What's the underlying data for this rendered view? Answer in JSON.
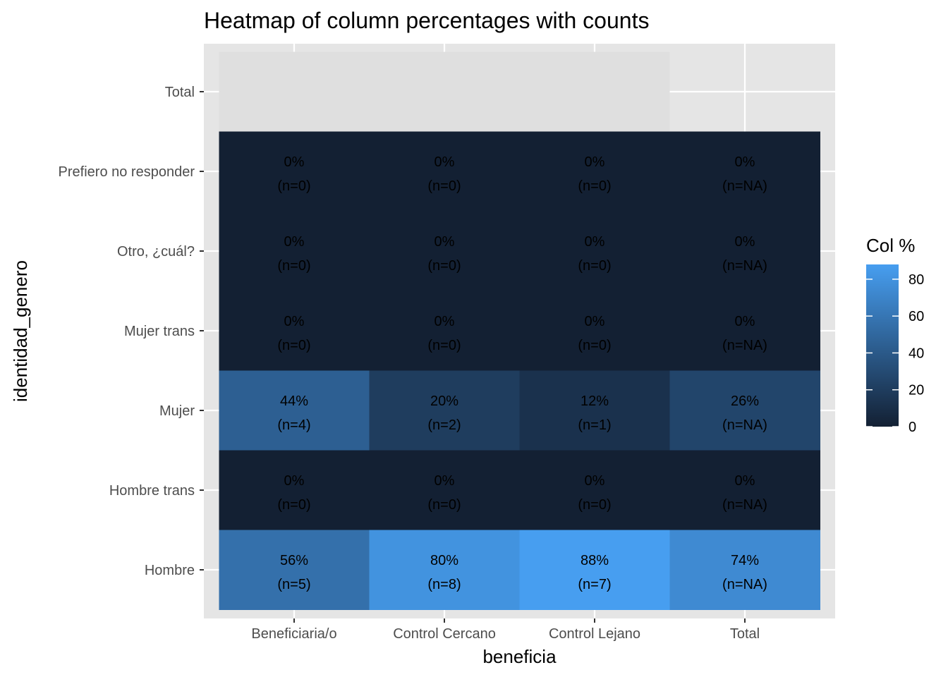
{
  "chart_data": {
    "type": "heatmap",
    "title": "Heatmap of column percentages with counts",
    "xlabel": "beneficia",
    "ylabel": "identidad_genero",
    "x_categories": [
      "Beneficiaria/o",
      "Control Cercano",
      "Control Lejano",
      "Total"
    ],
    "y_categories": [
      "Total",
      "Prefiero no responder",
      "Otro, ¿cuál?",
      "Mujer trans",
      "Mujer",
      "Hombre trans",
      "Hombre"
    ],
    "total_row": {
      "y": "Total",
      "x_span": [
        "Beneficiaria/o",
        "Control Lejano"
      ],
      "color": "#dfdfdf"
    },
    "cells": [
      {
        "y": "Prefiero no responder",
        "x": "Beneficiaria/o",
        "value": 0,
        "pct": "0%",
        "count": "(n=0)"
      },
      {
        "y": "Prefiero no responder",
        "x": "Control Cercano",
        "value": 0,
        "pct": "0%",
        "count": "(n=0)"
      },
      {
        "y": "Prefiero no responder",
        "x": "Control Lejano",
        "value": 0,
        "pct": "0%",
        "count": "(n=0)"
      },
      {
        "y": "Prefiero no responder",
        "x": "Total",
        "value": 0,
        "pct": "0%",
        "count": "(n=NA)"
      },
      {
        "y": "Otro, ¿cuál?",
        "x": "Beneficiaria/o",
        "value": 0,
        "pct": "0%",
        "count": "(n=0)"
      },
      {
        "y": "Otro, ¿cuál?",
        "x": "Control Cercano",
        "value": 0,
        "pct": "0%",
        "count": "(n=0)"
      },
      {
        "y": "Otro, ¿cuál?",
        "x": "Control Lejano",
        "value": 0,
        "pct": "0%",
        "count": "(n=0)"
      },
      {
        "y": "Otro, ¿cuál?",
        "x": "Total",
        "value": 0,
        "pct": "0%",
        "count": "(n=NA)"
      },
      {
        "y": "Mujer trans",
        "x": "Beneficiaria/o",
        "value": 0,
        "pct": "0%",
        "count": "(n=0)"
      },
      {
        "y": "Mujer trans",
        "x": "Control Cercano",
        "value": 0,
        "pct": "0%",
        "count": "(n=0)"
      },
      {
        "y": "Mujer trans",
        "x": "Control Lejano",
        "value": 0,
        "pct": "0%",
        "count": "(n=0)"
      },
      {
        "y": "Mujer trans",
        "x": "Total",
        "value": 0,
        "pct": "0%",
        "count": "(n=NA)"
      },
      {
        "y": "Mujer",
        "x": "Beneficiaria/o",
        "value": 44,
        "pct": "44%",
        "count": "(n=4)"
      },
      {
        "y": "Mujer",
        "x": "Control Cercano",
        "value": 20,
        "pct": "20%",
        "count": "(n=2)"
      },
      {
        "y": "Mujer",
        "x": "Control Lejano",
        "value": 12,
        "pct": "12%",
        "count": "(n=1)"
      },
      {
        "y": "Mujer",
        "x": "Total",
        "value": 26,
        "pct": "26%",
        "count": "(n=NA)"
      },
      {
        "y": "Hombre trans",
        "x": "Beneficiaria/o",
        "value": 0,
        "pct": "0%",
        "count": "(n=0)"
      },
      {
        "y": "Hombre trans",
        "x": "Control Cercano",
        "value": 0,
        "pct": "0%",
        "count": "(n=0)"
      },
      {
        "y": "Hombre trans",
        "x": "Control Lejano",
        "value": 0,
        "pct": "0%",
        "count": "(n=0)"
      },
      {
        "y": "Hombre trans",
        "x": "Total",
        "value": 0,
        "pct": "0%",
        "count": "(n=NA)"
      },
      {
        "y": "Hombre",
        "x": "Beneficiaria/o",
        "value": 56,
        "pct": "56%",
        "count": "(n=5)"
      },
      {
        "y": "Hombre",
        "x": "Control Cercano",
        "value": 80,
        "pct": "80%",
        "count": "(n=8)"
      },
      {
        "y": "Hombre",
        "x": "Control Lejano",
        "value": 88,
        "pct": "88%",
        "count": "(n=7)"
      },
      {
        "y": "Hombre",
        "x": "Total",
        "value": 74,
        "pct": "74%",
        "count": "(n=NA)"
      }
    ],
    "legend": {
      "title": "Col %",
      "position": "right",
      "ticks": [
        0,
        20,
        40,
        60,
        80
      ],
      "range": [
        0,
        88
      ],
      "color_low": "#132033",
      "color_high": "#479ef0"
    },
    "grid": true,
    "panel_color": "#e5e5e5"
  }
}
